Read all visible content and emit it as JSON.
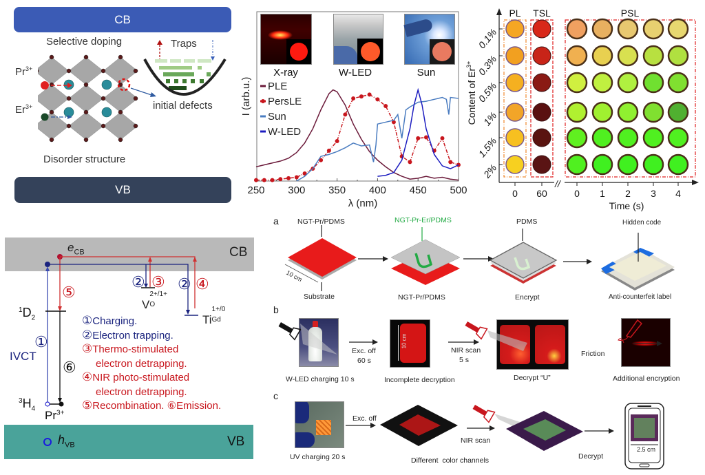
{
  "panel_tl": {
    "cb_label": "CB",
    "vb_label": "VB",
    "selective_doping": "Selective doping",
    "traps": "Traps",
    "pr_label": "Pr",
    "pr_sup": "3+",
    "er_label": "Er",
    "er_sup": "3+",
    "initial_defects": "initial defects",
    "disorder_structure": "Disorder structure",
    "colors": {
      "cb": "#3b5bb5",
      "vb": "#34425a"
    }
  },
  "chart_data": {
    "type": "line",
    "title": "",
    "xlabel": "λ (nm)",
    "ylabel": "I (arb.u.)",
    "xlim": [
      250,
      500
    ],
    "ylim": [
      0,
      1
    ],
    "xticks": [
      250,
      300,
      350,
      400,
      450,
      500
    ],
    "legend_position": "top-left",
    "image_labels": [
      "X-ray",
      "W-LED",
      "Sun"
    ],
    "series": [
      {
        "name": "PLE",
        "color": "#6b1a3a",
        "style": "solid",
        "x": [
          250,
          260,
          270,
          280,
          290,
          300,
          310,
          320,
          330,
          340,
          345,
          350,
          360,
          370,
          380,
          390,
          400,
          410,
          420,
          430,
          440,
          450,
          460,
          470,
          480,
          490,
          500
        ],
        "y": [
          0.15,
          0.17,
          0.19,
          0.21,
          0.24,
          0.3,
          0.4,
          0.55,
          0.75,
          0.92,
          0.96,
          0.94,
          0.8,
          0.6,
          0.44,
          0.31,
          0.22,
          0.15,
          0.09,
          0.05,
          0.02,
          0.03,
          0.05,
          0.03,
          0.04,
          0.02,
          0.01
        ]
      },
      {
        "name": "PersLE",
        "color": "#c8161d",
        "style": "dash-dot",
        "markers": true,
        "x": [
          250,
          260,
          270,
          280,
          290,
          300,
          310,
          320,
          330,
          340,
          350,
          360,
          370,
          380,
          390,
          400,
          410,
          420,
          430,
          440,
          450,
          460,
          470,
          480,
          490,
          500
        ],
        "y": [
          0.01,
          0.01,
          0.01,
          0.02,
          0.03,
          0.04,
          0.08,
          0.13,
          0.22,
          0.32,
          0.42,
          0.7,
          0.87,
          0.89,
          0.91,
          0.86,
          0.79,
          0.62,
          0.26,
          0.2,
          0.45,
          0.46,
          0.32,
          0.45,
          0.2,
          0.17
        ]
      },
      {
        "name": "Sun",
        "color": "#4a7cc0",
        "style": "solid",
        "x": [
          300,
          310,
          320,
          330,
          340,
          350,
          360,
          370,
          380,
          390,
          395,
          398,
          400,
          410,
          420,
          425,
          430,
          435,
          440,
          450,
          460,
          470,
          480,
          485,
          488,
          490,
          500
        ],
        "y": [
          0.0,
          0.05,
          0.13,
          0.26,
          0.28,
          0.31,
          0.35,
          0.4,
          0.37,
          0.38,
          0.2,
          0.38,
          0.6,
          0.62,
          0.64,
          0.7,
          0.45,
          0.75,
          0.78,
          0.83,
          0.84,
          0.86,
          0.88,
          0.86,
          0.7,
          0.88,
          0.87
        ]
      },
      {
        "name": "W-LED",
        "color": "#1c1cc0",
        "style": "solid",
        "x": [
          400,
          410,
          420,
          430,
          440,
          445,
          450,
          455,
          460,
          470,
          480,
          490,
          500
        ],
        "y": [
          0.05,
          0.06,
          0.09,
          0.22,
          0.55,
          0.8,
          0.96,
          0.8,
          0.55,
          0.28,
          0.16,
          0.13,
          0.17
        ]
      }
    ]
  },
  "panel_tr": {
    "column_headers": [
      "PL",
      "TSL",
      "PSL"
    ],
    "ylabel": "Content of Er",
    "ylabel_sup": "3+",
    "yticks": [
      "0.1%",
      "0.3%",
      "0.5%",
      "1%",
      "1.5%",
      "2%"
    ],
    "xticks": [
      "0",
      "60",
      "0",
      "1",
      "2",
      "3",
      "4"
    ],
    "xlabel": "Time (s)",
    "break_mark": "//"
  },
  "panel_bl": {
    "cb_label": "CB",
    "vb_label": "VB",
    "e_cb": "e",
    "e_cb_sub": "CB",
    "h_vb": "h",
    "h_vb_sub": "VB",
    "level_1d2": "D",
    "level_1d2_pre": "1",
    "level_1d2_sub": "2",
    "level_3h4": "H",
    "level_3h4_pre": "3",
    "level_3h4_sub": "4",
    "pr_label": "Pr",
    "pr_sup": "3+",
    "ivct": "IVCT",
    "vo_label": "V",
    "vo_sup": "2+/1+",
    "vo_sub": "O",
    "ti_label": "Ti",
    "ti_sup": "1+/0",
    "ti_sub": "Gd",
    "legend": [
      {
        "num": "①",
        "text": "Charging.",
        "color": "#1a237e"
      },
      {
        "num": "②",
        "text": "Electron trapping.",
        "color": "#1a237e"
      },
      {
        "num": "③",
        "text": "Thermo-stimulated",
        "color": "#c8161d"
      },
      {
        "num": "",
        "text": "electron detrapping.",
        "color": "#c8161d"
      },
      {
        "num": "④",
        "text": "NIR photo-stimulated",
        "color": "#c8161d"
      },
      {
        "num": "",
        "text": "electron detrapping.",
        "color": "#c8161d"
      },
      {
        "num": "⑤",
        "text": "Recombination. ⑥Emission.",
        "color": "#c8161d"
      }
    ],
    "markers": {
      "m1": "①",
      "m2": "②",
      "m3": "③",
      "m4": "④",
      "m5": "⑤",
      "m6": "⑥"
    },
    "colors": {
      "cb": "#b9b9b9",
      "vb": "#4aa39a",
      "blue": "#1a237e",
      "red": "#c8161d"
    }
  },
  "panel_a": {
    "letter": "a",
    "labels": {
      "ngt_pr_pdms_top": "NGT-Pr/PDMS",
      "substrate": "Substrate",
      "size": "10 cm",
      "ngt_pr_er_pdms": "NGT-Pr-Er/PDMS",
      "ngt_pr_pdms_bottom": "NGT-Pr/PDMS",
      "pdms": "PDMS",
      "encrypt": "Encrypt",
      "hidden_code": "Hidden code",
      "anti_counterfeit": "Anti-counterfeit label"
    }
  },
  "panel_b": {
    "letter": "b",
    "labels": {
      "wled_charging": "W-LED charging 10 s",
      "exc_off": "Exc. off",
      "exc_off_time": "60 s",
      "incomplete": "Incomplete decryption",
      "size": "10 cm",
      "nir_scan": "NIR scan",
      "nir_time": "5 s",
      "decrypt_u": "Decrypt “U”",
      "friction": "Friction",
      "additional": "Additional encryption"
    }
  },
  "panel_c": {
    "letter": "c",
    "labels": {
      "uv_charging": "UV charging 20 s",
      "exc_off": "Exc. off",
      "color_channels": "Different  color channels",
      "nir_scan": "NIR scan",
      "decrypt": "Decrypt",
      "size": "2.5 cm"
    }
  }
}
